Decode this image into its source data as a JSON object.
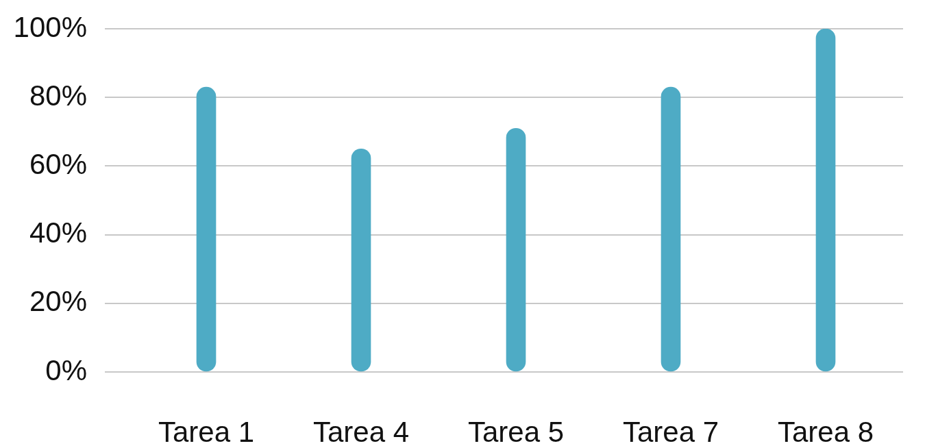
{
  "chart_data": {
    "type": "bar",
    "categories": [
      "Tarea 1",
      "Tarea 4",
      "Tarea 5",
      "Tarea 7",
      "Tarea 8"
    ],
    "values": [
      83,
      65,
      71,
      83,
      100
    ],
    "color": "#4eabc5",
    "ylim": [
      0,
      100
    ],
    "yticks": [
      {
        "value": 0,
        "label": "0%"
      },
      {
        "value": 20,
        "label": "20%"
      },
      {
        "value": 40,
        "label": "40%"
      },
      {
        "value": 60,
        "label": "60%"
      },
      {
        "value": 80,
        "label": "80%"
      },
      {
        "value": 100,
        "label": "100%"
      }
    ],
    "grid": "y"
  }
}
